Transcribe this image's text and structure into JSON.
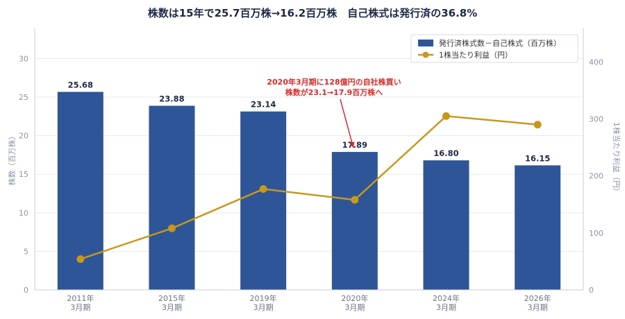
{
  "chart_data": {
    "type": "bar",
    "title": "株数は15年で25.7百万株→16.2百万株　自己株式は発行済の36.8%",
    "categories": [
      [
        "2011年",
        "3月期"
      ],
      [
        "2015年",
        "3月期"
      ],
      [
        "2019年",
        "3月期"
      ],
      [
        "2020年",
        "3月期"
      ],
      [
        "2024年",
        "3月期"
      ],
      [
        "2026年",
        "3月期"
      ]
    ],
    "series": [
      {
        "name": "発行済株式数－自己株式（百万株）",
        "type": "bar",
        "axis": "left",
        "values": [
          25.68,
          23.88,
          23.14,
          17.89,
          16.8,
          16.15
        ],
        "labels": [
          "25.68",
          "23.88",
          "23.14",
          "17.89",
          "16.80",
          "16.15"
        ],
        "color": "#2e5597"
      },
      {
        "name": "1株当たり利益（円）",
        "type": "line",
        "axis": "right",
        "values": [
          54,
          108,
          177,
          158,
          305,
          290
        ],
        "color": "#c9971a"
      }
    ],
    "ylabel": "株数（百万株）",
    "y2label": "1株当たり利益（円）",
    "ylim": [
      0,
      34
    ],
    "yticks": [
      0,
      5,
      10,
      15,
      20,
      25,
      30
    ],
    "y2lim": [
      0,
      460
    ],
    "y2ticks": [
      0,
      100,
      200,
      300,
      400
    ],
    "grid": true,
    "legend": "top-right",
    "annotation": {
      "lines": [
        "2020年3月期に128億円の自社株買い",
        "株数が23.1→17.9百万株へ"
      ],
      "target_category": 3,
      "color": "#d62b2b"
    }
  }
}
